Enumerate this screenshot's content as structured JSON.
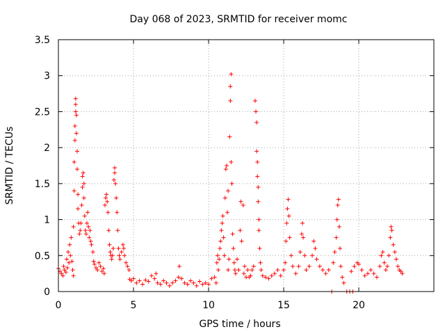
{
  "chart_data": {
    "type": "scatter",
    "title": "Day 068 of 2023, SRMTID for receiver momc",
    "xlabel": "GPS time / hours",
    "ylabel": "SRMTID / TECUs",
    "xlim": [
      0,
      25
    ],
    "ylim": [
      0,
      3.5
    ],
    "xticks": [
      0,
      5,
      10,
      15,
      20
    ],
    "xtick_labels": [
      "0",
      "5",
      "10",
      "15",
      "20"
    ],
    "yticks": [
      0,
      0.5,
      1,
      1.5,
      2,
      2.5,
      3,
      3.5
    ],
    "ytick_labels": [
      "0",
      "0.5",
      "1",
      "1.5",
      "2",
      "2.5",
      "3",
      "3.5"
    ],
    "grid": true,
    "marker": "+",
    "series": [
      {
        "name": "SRMTID",
        "color": "#ff0000",
        "points": [
          [
            0.0,
            0.32
          ],
          [
            0.1,
            0.28
          ],
          [
            0.2,
            0.25
          ],
          [
            0.3,
            0.22
          ],
          [
            0.35,
            0.35
          ],
          [
            0.4,
            0.3
          ],
          [
            0.5,
            0.27
          ],
          [
            0.55,
            0.45
          ],
          [
            0.6,
            0.33
          ],
          [
            0.65,
            0.55
          ],
          [
            0.7,
            0.4
          ],
          [
            0.75,
            0.65
          ],
          [
            0.8,
            0.5
          ],
          [
            0.85,
            0.75
          ],
          [
            0.9,
            0.42
          ],
          [
            0.95,
            0.3
          ],
          [
            1.0,
            0.22
          ],
          [
            1.0,
            0.9
          ],
          [
            1.05,
            1.4
          ],
          [
            1.05,
            1.8
          ],
          [
            1.1,
            2.1
          ],
          [
            1.1,
            2.3
          ],
          [
            1.15,
            2.5
          ],
          [
            1.15,
            2.6
          ],
          [
            1.15,
            2.68
          ],
          [
            1.2,
            2.45
          ],
          [
            1.2,
            2.2
          ],
          [
            1.25,
            1.95
          ],
          [
            1.25,
            1.7
          ],
          [
            1.3,
            1.35
          ],
          [
            1.3,
            1.15
          ],
          [
            1.35,
            0.95
          ],
          [
            1.4,
            0.8
          ],
          [
            1.45,
            0.85
          ],
          [
            1.5,
            0.95
          ],
          [
            1.55,
            1.2
          ],
          [
            1.6,
            1.45
          ],
          [
            1.6,
            1.6
          ],
          [
            1.65,
            1.65
          ],
          [
            1.7,
            1.5
          ],
          [
            1.7,
            1.3
          ],
          [
            1.75,
            1.05
          ],
          [
            1.8,
            0.85
          ],
          [
            1.85,
            0.8
          ],
          [
            1.9,
            0.95
          ],
          [
            1.95,
            1.1
          ],
          [
            2.0,
            0.9
          ],
          [
            2.05,
            0.75
          ],
          [
            2.1,
            0.85
          ],
          [
            2.15,
            0.7
          ],
          [
            2.2,
            0.65
          ],
          [
            2.3,
            0.55
          ],
          [
            2.35,
            0.42
          ],
          [
            2.4,
            0.38
          ],
          [
            2.5,
            0.33
          ],
          [
            2.6,
            0.3
          ],
          [
            2.7,
            0.4
          ],
          [
            2.8,
            0.35
          ],
          [
            2.9,
            0.28
          ],
          [
            3.0,
            0.32
          ],
          [
            3.05,
            0.25
          ],
          [
            3.1,
            1.2
          ],
          [
            3.15,
            1.3
          ],
          [
            3.2,
            1.35
          ],
          [
            3.25,
            1.25
          ],
          [
            3.3,
            1.1
          ],
          [
            3.35,
            0.85
          ],
          [
            3.4,
            0.65
          ],
          [
            3.45,
            0.55
          ],
          [
            3.5,
            0.5
          ],
          [
            3.55,
            0.45
          ],
          [
            3.6,
            0.5
          ],
          [
            3.65,
            0.6
          ],
          [
            3.7,
            1.55
          ],
          [
            3.75,
            1.72
          ],
          [
            3.75,
            1.65
          ],
          [
            3.8,
            1.5
          ],
          [
            3.85,
            1.3
          ],
          [
            3.9,
            1.1
          ],
          [
            3.95,
            0.85
          ],
          [
            4.0,
            0.6
          ],
          [
            4.05,
            0.5
          ],
          [
            4.1,
            0.45
          ],
          [
            4.2,
            0.55
          ],
          [
            4.3,
            0.65
          ],
          [
            4.35,
            0.6
          ],
          [
            4.4,
            0.5
          ],
          [
            4.5,
            0.4
          ],
          [
            4.6,
            0.35
          ],
          [
            4.7,
            0.3
          ],
          [
            4.75,
            0.17
          ],
          [
            4.85,
            0.15
          ],
          [
            5.0,
            0.18
          ],
          [
            5.2,
            0.12
          ],
          [
            5.4,
            0.15
          ],
          [
            5.6,
            0.1
          ],
          [
            5.8,
            0.16
          ],
          [
            6.0,
            0.14
          ],
          [
            6.2,
            0.22
          ],
          [
            6.4,
            0.18
          ],
          [
            6.5,
            0.25
          ],
          [
            6.6,
            0.12
          ],
          [
            6.8,
            0.1
          ],
          [
            7.0,
            0.15
          ],
          [
            7.2,
            0.12
          ],
          [
            7.4,
            0.08
          ],
          [
            7.6,
            0.12
          ],
          [
            7.8,
            0.15
          ],
          [
            8.0,
            0.2
          ],
          [
            8.05,
            0.35
          ],
          [
            8.2,
            0.18
          ],
          [
            8.4,
            0.12
          ],
          [
            8.6,
            0.1
          ],
          [
            8.8,
            0.15
          ],
          [
            9.0,
            0.12
          ],
          [
            9.2,
            0.08
          ],
          [
            9.4,
            0.14
          ],
          [
            9.6,
            0.1
          ],
          [
            9.8,
            0.12
          ],
          [
            10.0,
            0.1
          ],
          [
            10.2,
            0.18
          ],
          [
            10.4,
            0.2
          ],
          [
            10.5,
            0.12
          ],
          [
            10.55,
            0.4
          ],
          [
            10.6,
            0.5
          ],
          [
            10.65,
            0.3
          ],
          [
            10.7,
            0.45
          ],
          [
            10.75,
            0.6
          ],
          [
            10.8,
            0.7
          ],
          [
            10.85,
            0.85
          ],
          [
            10.9,
            0.95
          ],
          [
            10.95,
            1.05
          ],
          [
            11.0,
            0.75
          ],
          [
            11.05,
            0.5
          ],
          [
            11.1,
            1.3
          ],
          [
            11.15,
            1.7
          ],
          [
            11.2,
            1.75
          ],
          [
            11.25,
            1.1
          ],
          [
            11.3,
            1.4
          ],
          [
            11.3,
            0.3
          ],
          [
            11.35,
            0.45
          ],
          [
            11.4,
            2.15
          ],
          [
            11.45,
            2.65
          ],
          [
            11.45,
            2.85
          ],
          [
            11.5,
            3.02
          ],
          [
            11.5,
            1.8
          ],
          [
            11.55,
            1.5
          ],
          [
            11.6,
            0.8
          ],
          [
            11.65,
            0.6
          ],
          [
            11.7,
            0.4
          ],
          [
            11.75,
            0.3
          ],
          [
            11.8,
            0.25
          ],
          [
            11.9,
            0.45
          ],
          [
            12.0,
            0.3
          ],
          [
            12.1,
            0.85
          ],
          [
            12.15,
            1.25
          ],
          [
            12.2,
            0.7
          ],
          [
            12.3,
            1.2
          ],
          [
            12.35,
            0.25
          ],
          [
            12.4,
            0.35
          ],
          [
            12.5,
            0.2
          ],
          [
            12.6,
            0.3
          ],
          [
            12.7,
            0.2
          ],
          [
            12.8,
            0.22
          ],
          [
            12.9,
            0.3
          ],
          [
            13.0,
            0.35
          ],
          [
            13.1,
            2.65
          ],
          [
            13.15,
            2.5
          ],
          [
            13.2,
            2.35
          ],
          [
            13.2,
            1.95
          ],
          [
            13.25,
            1.8
          ],
          [
            13.25,
            1.6
          ],
          [
            13.3,
            1.45
          ],
          [
            13.3,
            1.25
          ],
          [
            13.35,
            1.0
          ],
          [
            13.35,
            0.85
          ],
          [
            13.4,
            0.6
          ],
          [
            13.45,
            0.4
          ],
          [
            13.5,
            0.3
          ],
          [
            13.6,
            0.22
          ],
          [
            13.8,
            0.2
          ],
          [
            14.0,
            0.18
          ],
          [
            14.2,
            0.22
          ],
          [
            14.4,
            0.25
          ],
          [
            14.6,
            0.3
          ],
          [
            14.8,
            0.22
          ],
          [
            15.0,
            0.3
          ],
          [
            15.1,
            0.4
          ],
          [
            15.15,
            0.7
          ],
          [
            15.2,
            0.95
          ],
          [
            15.25,
            1.15
          ],
          [
            15.3,
            1.28
          ],
          [
            15.35,
            1.05
          ],
          [
            15.4,
            0.75
          ],
          [
            15.5,
            0.5
          ],
          [
            15.6,
            0.35
          ],
          [
            15.8,
            0.25
          ],
          [
            16.0,
            0.35
          ],
          [
            16.1,
            0.55
          ],
          [
            16.2,
            0.8
          ],
          [
            16.25,
            0.95
          ],
          [
            16.3,
            0.75
          ],
          [
            16.4,
            0.5
          ],
          [
            16.5,
            0.3
          ],
          [
            16.7,
            0.35
          ],
          [
            16.9,
            0.5
          ],
          [
            17.0,
            0.7
          ],
          [
            17.1,
            0.6
          ],
          [
            17.2,
            0.45
          ],
          [
            17.4,
            0.35
          ],
          [
            17.6,
            0.3
          ],
          [
            17.8,
            0.25
          ],
          [
            18.0,
            0.3
          ],
          [
            18.2,
            0.0
          ],
          [
            18.3,
            0.4
          ],
          [
            18.4,
            0.55
          ],
          [
            18.5,
            0.75
          ],
          [
            18.55,
            1.0
          ],
          [
            18.6,
            1.2
          ],
          [
            18.65,
            1.28
          ],
          [
            18.7,
            0.9
          ],
          [
            18.75,
            0.6
          ],
          [
            18.8,
            0.35
          ],
          [
            18.9,
            0.2
          ],
          [
            19.0,
            0.12
          ],
          [
            19.2,
            0.0
          ],
          [
            19.4,
            0.0
          ],
          [
            19.6,
            0.0
          ],
          [
            19.5,
            0.28
          ],
          [
            19.7,
            0.35
          ],
          [
            19.9,
            0.4
          ],
          [
            20.0,
            0.38
          ],
          [
            20.2,
            0.3
          ],
          [
            20.4,
            0.22
          ],
          [
            20.6,
            0.25
          ],
          [
            20.8,
            0.3
          ],
          [
            21.0,
            0.25
          ],
          [
            21.2,
            0.2
          ],
          [
            21.4,
            0.35
          ],
          [
            21.5,
            0.5
          ],
          [
            21.6,
            0.55
          ],
          [
            21.7,
            0.4
          ],
          [
            21.8,
            0.3
          ],
          [
            21.9,
            0.35
          ],
          [
            22.0,
            0.5
          ],
          [
            22.1,
            0.75
          ],
          [
            22.15,
            0.9
          ],
          [
            22.2,
            0.85
          ],
          [
            22.3,
            0.65
          ],
          [
            22.4,
            0.55
          ],
          [
            22.5,
            0.45
          ],
          [
            22.6,
            0.35
          ],
          [
            22.7,
            0.3
          ],
          [
            22.8,
            0.28
          ],
          [
            22.9,
            0.25
          ]
        ]
      }
    ]
  }
}
